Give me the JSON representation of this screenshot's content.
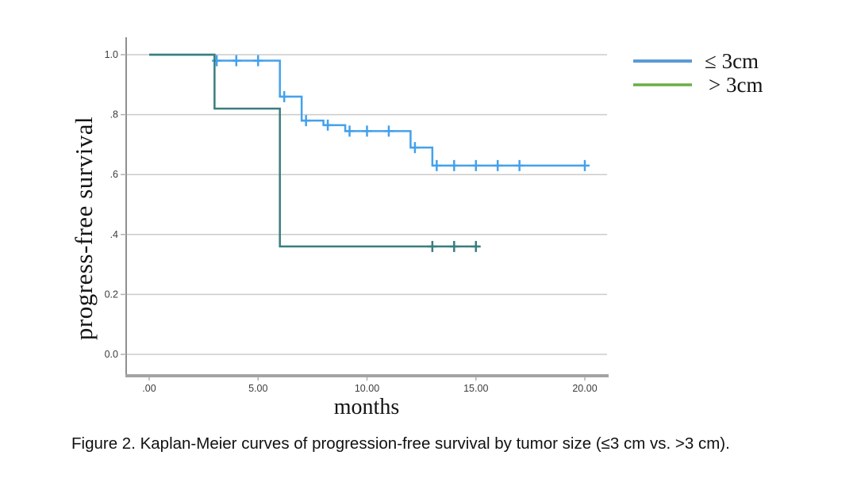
{
  "figure": {
    "caption": "Figure 2. Kaplan-Meier curves of progression-free survival by tumor size (≤3 cm vs. >3 cm)."
  },
  "chart_data": {
    "type": "line",
    "subtype": "kaplan-meier-step",
    "title": "",
    "xlabel": "months",
    "ylabel": "progress-free survival",
    "xlim": [
      -1,
      21
    ],
    "ylim": [
      -0.05,
      1.05
    ],
    "grid": true,
    "x_ticks": [
      {
        "value": 0,
        "label": ".00"
      },
      {
        "value": 5,
        "label": "5.00"
      },
      {
        "value": 10,
        "label": "10.00"
      },
      {
        "value": 15,
        "label": "15.00"
      },
      {
        "value": 20,
        "label": "20.00"
      }
    ],
    "y_ticks": [
      {
        "value": 0.0,
        "label": "0.0"
      },
      {
        "value": 0.2,
        "label": "0.2"
      },
      {
        "value": 0.4,
        "label": ".4"
      },
      {
        "value": 0.6,
        "label": ".6"
      },
      {
        "value": 0.8,
        "label": ".8"
      },
      {
        "value": 1.0,
        "label": "1.0"
      }
    ],
    "legend": {
      "position": "top-right",
      "entries": [
        {
          "label": "≤ 3cm",
          "color": "#5b9bd5"
        },
        {
          "label": "> 3cm",
          "color": "#6aad47"
        }
      ]
    },
    "series": [
      {
        "name": "≤ 3cm",
        "curve_color": "#44a1ec",
        "steps": [
          [
            0,
            1.0
          ],
          [
            3,
            0.98
          ],
          [
            6,
            0.86
          ],
          [
            7,
            0.78
          ],
          [
            8,
            0.765
          ],
          [
            9,
            0.745
          ],
          [
            12,
            0.69
          ],
          [
            13,
            0.63
          ]
        ],
        "end_x": 20,
        "censors": [
          [
            3.1,
            0.98
          ],
          [
            4,
            0.98
          ],
          [
            5,
            0.98
          ],
          [
            6.2,
            0.86
          ],
          [
            7.2,
            0.78
          ],
          [
            8.2,
            0.765
          ],
          [
            9.2,
            0.745
          ],
          [
            10,
            0.745
          ],
          [
            11,
            0.745
          ],
          [
            12.2,
            0.69
          ],
          [
            13.2,
            0.63
          ],
          [
            14,
            0.63
          ],
          [
            15,
            0.63
          ],
          [
            16,
            0.63
          ],
          [
            17,
            0.63
          ],
          [
            20,
            0.63
          ]
        ]
      },
      {
        "name": "> 3cm",
        "curve_color": "#3a7d7f",
        "steps": [
          [
            0,
            1.0
          ],
          [
            3,
            0.82
          ],
          [
            6,
            0.36
          ]
        ],
        "end_x": 15.15,
        "censors": [
          [
            13,
            0.36
          ],
          [
            14,
            0.36
          ],
          [
            15,
            0.36
          ]
        ]
      }
    ],
    "colors": {
      "gridline": "#cbcbcb",
      "y_axis": "#8f8f8f",
      "x_axis": "#a3a3a3",
      "tick_text": "#3c3c3c"
    }
  }
}
